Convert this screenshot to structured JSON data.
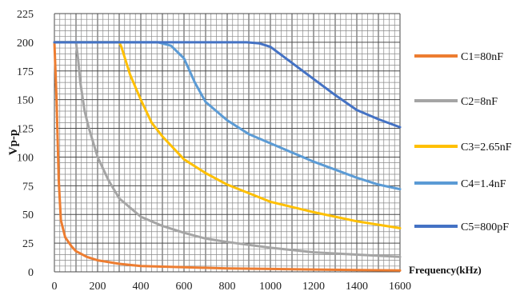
{
  "chart_data": {
    "type": "line",
    "xlabel": "Frequency(kHz)",
    "ylabel": "Vp-p",
    "xlim": [
      0,
      1600
    ],
    "ylim": [
      0,
      225
    ],
    "xticks": [
      0,
      200,
      400,
      600,
      800,
      1000,
      1200,
      1400,
      1600
    ],
    "yticks": [
      0,
      25,
      50,
      75,
      100,
      125,
      150,
      175,
      200,
      225
    ],
    "grid": true,
    "legend": "right",
    "series": [
      {
        "name": "C1=80nF",
        "color": "#ED7D31",
        "points": [
          [
            0,
            200
          ],
          [
            10,
            150
          ],
          [
            20,
            80
          ],
          [
            30,
            45
          ],
          [
            50,
            30
          ],
          [
            80,
            22
          ],
          [
            100,
            18
          ],
          [
            150,
            13
          ],
          [
            200,
            10
          ],
          [
            300,
            7
          ],
          [
            400,
            5
          ],
          [
            600,
            4
          ],
          [
            800,
            3
          ],
          [
            1000,
            2.5
          ],
          [
            1200,
            2
          ],
          [
            1400,
            1.5
          ],
          [
            1600,
            1.2
          ]
        ]
      },
      {
        "name": "C2=8nF",
        "color": "#A5A5A5",
        "points": [
          [
            0,
            200
          ],
          [
            100,
            200
          ],
          [
            110,
            185
          ],
          [
            120,
            165
          ],
          [
            140,
            140
          ],
          [
            160,
            125
          ],
          [
            200,
            100
          ],
          [
            250,
            80
          ],
          [
            300,
            64
          ],
          [
            400,
            48
          ],
          [
            500,
            40
          ],
          [
            600,
            34
          ],
          [
            700,
            29
          ],
          [
            800,
            26
          ],
          [
            1000,
            21
          ],
          [
            1200,
            17
          ],
          [
            1400,
            15
          ],
          [
            1600,
            13
          ]
        ]
      },
      {
        "name": "C3=2.65nF",
        "color": "#FFC000",
        "points": [
          [
            0,
            200
          ],
          [
            300,
            200
          ],
          [
            310,
            196
          ],
          [
            350,
            172
          ],
          [
            400,
            150
          ],
          [
            450,
            130
          ],
          [
            500,
            118
          ],
          [
            600,
            98
          ],
          [
            700,
            86
          ],
          [
            800,
            76
          ],
          [
            1000,
            61
          ],
          [
            1200,
            52
          ],
          [
            1400,
            44
          ],
          [
            1600,
            38
          ]
        ]
      },
      {
        "name": "C4=1.4nF",
        "color": "#5B9BD5",
        "points": [
          [
            0,
            200
          ],
          [
            480,
            200
          ],
          [
            540,
            197
          ],
          [
            600,
            186
          ],
          [
            650,
            165
          ],
          [
            700,
            148
          ],
          [
            800,
            132
          ],
          [
            900,
            120
          ],
          [
            1000,
            112
          ],
          [
            1100,
            104
          ],
          [
            1200,
            96
          ],
          [
            1300,
            89
          ],
          [
            1400,
            82
          ],
          [
            1500,
            76
          ],
          [
            1600,
            72
          ]
        ]
      },
      {
        "name": "C5=800pF",
        "color": "#4472C4",
        "points": [
          [
            0,
            200
          ],
          [
            890,
            200
          ],
          [
            950,
            199
          ],
          [
            1000,
            196
          ],
          [
            1100,
            182
          ],
          [
            1200,
            168
          ],
          [
            1300,
            154
          ],
          [
            1400,
            141
          ],
          [
            1500,
            133
          ],
          [
            1600,
            126
          ]
        ]
      }
    ]
  }
}
